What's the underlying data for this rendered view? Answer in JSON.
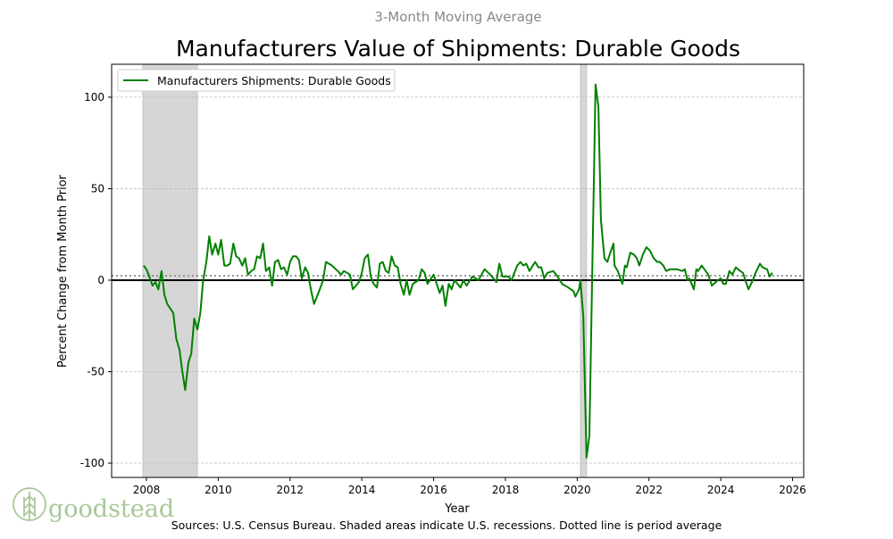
{
  "chart_data": {
    "type": "line",
    "supertitle": "3-Month Moving Average",
    "title": "Manufacturers Value of Shipments: Durable Goods",
    "xlabel": "Year",
    "ylabel": "Percent Change from Month Prior",
    "source": "Sources: U.S. Census Bureau. Shaded areas indicate U.S. recessions. Dotted line is period average",
    "xlim": [
      2007.03,
      2026.31
    ],
    "ylim": [
      -107.8,
      118
    ],
    "xticks": [
      2008,
      2010,
      2012,
      2014,
      2016,
      2018,
      2020,
      2022,
      2024,
      2026
    ],
    "yticks": [
      -100,
      -50,
      0,
      50,
      100
    ],
    "grid": "horizontal dashed",
    "legend": {
      "position": "top-left",
      "entries": [
        "Manufacturers Shipments: Durable Goods"
      ]
    },
    "period_average": 2.4,
    "recessions": [
      [
        2007.9,
        2009.42
      ],
      [
        2020.09,
        2020.26
      ]
    ],
    "colors": {
      "series": "#008000",
      "recession": "#d6d6d6",
      "zero": "#000000",
      "average": "#888888"
    },
    "series": [
      {
        "name": "Manufacturers Shipments: Durable Goods",
        "points": [
          [
            2007.92,
            8
          ],
          [
            2008.0,
            6
          ],
          [
            2008.08,
            2
          ],
          [
            2008.17,
            -3
          ],
          [
            2008.25,
            -1
          ],
          [
            2008.33,
            -5
          ],
          [
            2008.42,
            5
          ],
          [
            2008.5,
            -8
          ],
          [
            2008.58,
            -13
          ],
          [
            2008.75,
            -18
          ],
          [
            2008.83,
            -32
          ],
          [
            2008.92,
            -38
          ],
          [
            2009.0,
            -50
          ],
          [
            2009.08,
            -60
          ],
          [
            2009.17,
            -45
          ],
          [
            2009.25,
            -40
          ],
          [
            2009.33,
            -21
          ],
          [
            2009.42,
            -27
          ],
          [
            2009.5,
            -18
          ],
          [
            2009.58,
            0
          ],
          [
            2009.67,
            10
          ],
          [
            2009.75,
            24
          ],
          [
            2009.83,
            14
          ],
          [
            2009.92,
            20
          ],
          [
            2010.0,
            14
          ],
          [
            2010.08,
            22
          ],
          [
            2010.17,
            8
          ],
          [
            2010.25,
            8
          ],
          [
            2010.33,
            9
          ],
          [
            2010.42,
            20
          ],
          [
            2010.5,
            13
          ],
          [
            2010.58,
            12
          ],
          [
            2010.67,
            8
          ],
          [
            2010.75,
            12
          ],
          [
            2010.83,
            3
          ],
          [
            2010.92,
            5
          ],
          [
            2011.0,
            6
          ],
          [
            2011.08,
            13
          ],
          [
            2011.17,
            12
          ],
          [
            2011.25,
            20
          ],
          [
            2011.33,
            5
          ],
          [
            2011.42,
            7
          ],
          [
            2011.5,
            -3
          ],
          [
            2011.58,
            10
          ],
          [
            2011.67,
            11
          ],
          [
            2011.75,
            6
          ],
          [
            2011.83,
            7
          ],
          [
            2011.92,
            3
          ],
          [
            2012.0,
            10
          ],
          [
            2012.08,
            13
          ],
          [
            2012.17,
            13
          ],
          [
            2012.25,
            11
          ],
          [
            2012.33,
            1
          ],
          [
            2012.42,
            7
          ],
          [
            2012.5,
            4
          ],
          [
            2012.58,
            -5
          ],
          [
            2012.67,
            -13
          ],
          [
            2012.83,
            -5
          ],
          [
            2012.92,
            0
          ],
          [
            2013.0,
            10
          ],
          [
            2013.17,
            8
          ],
          [
            2013.33,
            5
          ],
          [
            2013.42,
            3
          ],
          [
            2013.5,
            5
          ],
          [
            2013.67,
            3
          ],
          [
            2013.75,
            -5
          ],
          [
            2013.92,
            -1
          ],
          [
            2014.0,
            4
          ],
          [
            2014.08,
            12
          ],
          [
            2014.17,
            14
          ],
          [
            2014.25,
            2
          ],
          [
            2014.33,
            -2
          ],
          [
            2014.42,
            -4
          ],
          [
            2014.5,
            9
          ],
          [
            2014.58,
            10
          ],
          [
            2014.67,
            5
          ],
          [
            2014.75,
            4
          ],
          [
            2014.83,
            13
          ],
          [
            2014.92,
            8
          ],
          [
            2015.0,
            7
          ],
          [
            2015.08,
            -2
          ],
          [
            2015.17,
            -8
          ],
          [
            2015.25,
            0
          ],
          [
            2015.33,
            -8
          ],
          [
            2015.42,
            -2
          ],
          [
            2015.58,
            0
          ],
          [
            2015.67,
            6
          ],
          [
            2015.75,
            4
          ],
          [
            2015.83,
            -2
          ],
          [
            2016.0,
            3
          ],
          [
            2016.17,
            -7
          ],
          [
            2016.25,
            -3
          ],
          [
            2016.33,
            -14
          ],
          [
            2016.42,
            -2
          ],
          [
            2016.5,
            -5
          ],
          [
            2016.58,
            0
          ],
          [
            2016.75,
            -4
          ],
          [
            2016.83,
            0
          ],
          [
            2016.92,
            -3
          ],
          [
            2017.08,
            2
          ],
          [
            2017.25,
            0
          ],
          [
            2017.42,
            6
          ],
          [
            2017.58,
            3
          ],
          [
            2017.75,
            -1
          ],
          [
            2017.83,
            9
          ],
          [
            2017.92,
            2
          ],
          [
            2018.08,
            2
          ],
          [
            2018.17,
            0
          ],
          [
            2018.33,
            8
          ],
          [
            2018.42,
            10
          ],
          [
            2018.5,
            8
          ],
          [
            2018.58,
            9
          ],
          [
            2018.67,
            5
          ],
          [
            2018.83,
            10
          ],
          [
            2018.92,
            7
          ],
          [
            2019.0,
            7
          ],
          [
            2019.08,
            1
          ],
          [
            2019.17,
            4
          ],
          [
            2019.33,
            5
          ],
          [
            2019.42,
            3
          ],
          [
            2019.58,
            -2
          ],
          [
            2019.75,
            -4
          ],
          [
            2019.9,
            -6
          ],
          [
            2019.95,
            -9
          ],
          [
            2020.0,
            -7
          ],
          [
            2020.05,
            -5
          ],
          [
            2020.09,
            0
          ],
          [
            2020.17,
            -20
          ],
          [
            2020.26,
            -97
          ],
          [
            2020.34,
            -85
          ],
          [
            2020.51,
            107
          ],
          [
            2020.59,
            95
          ],
          [
            2020.66,
            33
          ],
          [
            2020.76,
            12
          ],
          [
            2020.84,
            10
          ],
          [
            2020.94,
            16
          ],
          [
            2021.01,
            20
          ],
          [
            2021.04,
            8
          ],
          [
            2021.13,
            5
          ],
          [
            2021.26,
            -2
          ],
          [
            2021.33,
            8
          ],
          [
            2021.38,
            7
          ],
          [
            2021.48,
            15
          ],
          [
            2021.58,
            14
          ],
          [
            2021.66,
            12
          ],
          [
            2021.73,
            8
          ],
          [
            2021.83,
            14
          ],
          [
            2021.93,
            18
          ],
          [
            2022.03,
            16
          ],
          [
            2022.13,
            12
          ],
          [
            2022.23,
            10
          ],
          [
            2022.3,
            10
          ],
          [
            2022.4,
            8
          ],
          [
            2022.48,
            5
          ],
          [
            2022.58,
            6
          ],
          [
            2022.78,
            6
          ],
          [
            2022.93,
            5
          ],
          [
            2023.0,
            6
          ],
          [
            2023.07,
            0
          ],
          [
            2023.12,
            1
          ],
          [
            2023.25,
            -5
          ],
          [
            2023.32,
            6
          ],
          [
            2023.37,
            5
          ],
          [
            2023.47,
            8
          ],
          [
            2023.65,
            3
          ],
          [
            2023.75,
            -3
          ],
          [
            2023.92,
            0
          ],
          [
            2024.0,
            1
          ],
          [
            2024.07,
            -2
          ],
          [
            2024.14,
            -2
          ],
          [
            2024.24,
            5
          ],
          [
            2024.32,
            3
          ],
          [
            2024.42,
            7
          ],
          [
            2024.54,
            5
          ],
          [
            2024.62,
            4
          ],
          [
            2024.77,
            -5
          ],
          [
            2024.87,
            -1
          ],
          [
            2024.97,
            4
          ],
          [
            2025.09,
            9
          ],
          [
            2025.16,
            7
          ],
          [
            2025.29,
            6
          ],
          [
            2025.36,
            2
          ],
          [
            2025.44,
            4
          ]
        ]
      }
    ]
  },
  "brand": {
    "name": "goodstead",
    "color": "#a9c79a"
  }
}
